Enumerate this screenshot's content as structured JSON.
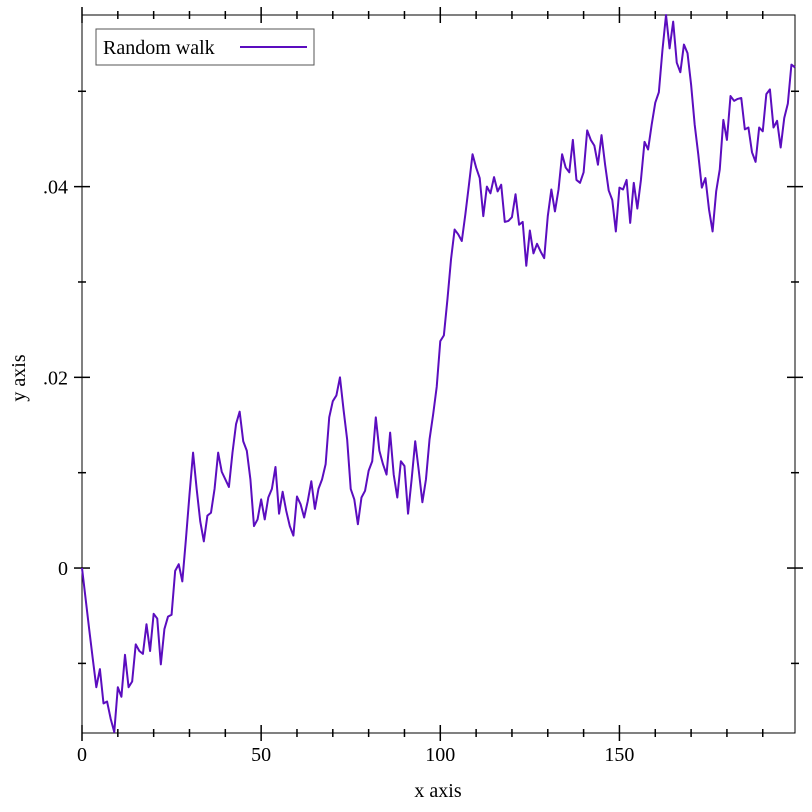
{
  "chart_data": {
    "type": "line",
    "xlabel": "x axis",
    "ylabel": "y axis",
    "x": [
      0,
      1,
      2,
      3,
      4,
      5,
      6,
      7,
      8,
      9,
      10,
      11,
      12,
      13,
      14,
      15,
      16,
      17,
      18,
      19,
      20,
      21,
      22,
      23,
      24,
      25,
      26,
      27,
      28,
      29,
      30,
      31,
      32,
      33,
      34,
      35,
      36,
      37,
      38,
      39,
      40,
      41,
      42,
      43,
      44,
      45,
      46,
      47,
      48,
      49,
      50,
      51,
      52,
      53,
      54,
      55,
      56,
      57,
      58,
      59,
      60,
      61,
      62,
      63,
      64,
      65,
      66,
      67,
      68,
      69,
      70,
      71,
      72,
      73,
      74,
      75,
      76,
      77,
      78,
      79,
      80,
      81,
      82,
      83,
      84,
      85,
      86,
      87,
      88,
      89,
      90,
      91,
      92,
      93,
      94,
      95,
      96,
      97,
      98,
      99,
      100,
      101,
      102,
      103,
      104,
      105,
      106,
      107,
      108,
      109,
      110,
      111,
      112,
      113,
      114,
      115,
      116,
      117,
      118,
      119,
      120,
      121,
      122,
      123,
      124,
      125,
      126,
      127,
      128,
      129,
      130,
      131,
      132,
      133,
      134,
      135,
      136,
      137,
      138,
      139,
      140,
      141,
      142,
      143,
      144,
      145,
      146,
      147,
      148,
      149,
      150,
      151,
      152,
      153,
      154,
      155,
      156,
      157,
      158,
      159,
      160,
      161,
      162,
      163,
      164,
      165,
      166,
      167,
      168,
      169,
      170,
      171,
      172,
      173,
      174,
      175,
      176,
      177,
      178,
      179,
      180,
      181,
      182,
      183,
      184,
      185,
      186,
      187,
      188,
      189,
      190,
      191,
      192,
      193,
      194,
      195,
      196,
      197,
      198,
      199
    ],
    "series": [
      {
        "name": "Random walk",
        "color": "#5b0dbf",
        "values": [
          0,
          -0.0032,
          -0.0064,
          -0.0095,
          -0.0125,
          -0.0106,
          -0.0142,
          -0.014,
          -0.0158,
          -0.0172,
          -0.0125,
          -0.0135,
          -0.0091,
          -0.0125,
          -0.0119,
          -0.008,
          -0.0087,
          -0.009,
          -0.0059,
          -0.0087,
          -0.0048,
          -0.0053,
          -0.0101,
          -0.0064,
          -0.0051,
          -0.0049,
          -0.0003,
          0.0004,
          -0.0014,
          0.003,
          0.0077,
          0.0121,
          0.0083,
          0.0049,
          0.0028,
          0.0055,
          0.0058,
          0.0083,
          0.0121,
          0.0101,
          0.0093,
          0.0085,
          0.0121,
          0.0151,
          0.0164,
          0.0133,
          0.0123,
          0.0093,
          0.0044,
          0.0051,
          0.0072,
          0.0051,
          0.0074,
          0.0083,
          0.0106,
          0.0057,
          0.008,
          0.006,
          0.0044,
          0.0034,
          0.0075,
          0.0067,
          0.0053,
          0.007,
          0.0091,
          0.0062,
          0.0083,
          0.0093,
          0.0109,
          0.0158,
          0.0175,
          0.0181,
          0.02,
          0.0166,
          0.0135,
          0.0083,
          0.0072,
          0.0046,
          0.0074,
          0.0081,
          0.0102,
          0.0112,
          0.0158,
          0.0123,
          0.0109,
          0.0098,
          0.0142,
          0.0098,
          0.0074,
          0.0112,
          0.0107,
          0.0057,
          0.0093,
          0.0133,
          0.0102,
          0.0069,
          0.0093,
          0.0135,
          0.0161,
          0.019,
          0.0238,
          0.0244,
          0.0282,
          0.0324,
          0.0355,
          0.035,
          0.0343,
          0.0371,
          0.0402,
          0.0434,
          0.042,
          0.0409,
          0.0369,
          0.04,
          0.0393,
          0.041,
          0.0395,
          0.0402,
          0.0363,
          0.0364,
          0.0368,
          0.0392,
          0.036,
          0.0363,
          0.0317,
          0.0354,
          0.033,
          0.034,
          0.0332,
          0.0325,
          0.0369,
          0.0397,
          0.0374,
          0.0397,
          0.0434,
          0.042,
          0.0415,
          0.0449,
          0.0407,
          0.0404,
          0.0415,
          0.0459,
          0.0449,
          0.0443,
          0.0423,
          0.0454,
          0.0423,
          0.0396,
          0.0386,
          0.0353,
          0.0399,
          0.0397,
          0.0407,
          0.0362,
          0.0404,
          0.0377,
          0.0407,
          0.0447,
          0.0439,
          0.0465,
          0.0488,
          0.0499,
          0.0543,
          0.058,
          0.0545,
          0.0573,
          0.053,
          0.052,
          0.0549,
          0.054,
          0.0507,
          0.0465,
          0.0434,
          0.0399,
          0.0409,
          0.0376,
          0.0353,
          0.0395,
          0.0418,
          0.047,
          0.0449,
          0.0495,
          0.049,
          0.0492,
          0.0493,
          0.046,
          0.0462,
          0.0436,
          0.0426,
          0.0462,
          0.0458,
          0.0497,
          0.0502,
          0.0462,
          0.0469,
          0.0441,
          0.0472,
          0.0487,
          0.0528,
          0.0525
        ]
      }
    ],
    "xlim": [
      0,
      199
    ],
    "ylim": [
      -0.0173,
      0.058
    ],
    "xticks": [
      0,
      50,
      100,
      150
    ],
    "xminorticks": [
      10,
      20,
      30,
      40,
      60,
      70,
      80,
      90,
      110,
      120,
      130,
      140,
      160,
      170,
      180,
      190
    ],
    "yticks": [
      0,
      {
        "value": 0.02,
        "label": ".02"
      },
      {
        "value": 0.04,
        "label": ".04"
      }
    ],
    "yminorticks": [
      -0.01,
      0.01,
      0.03,
      0.05
    ],
    "legend": "upper left"
  }
}
